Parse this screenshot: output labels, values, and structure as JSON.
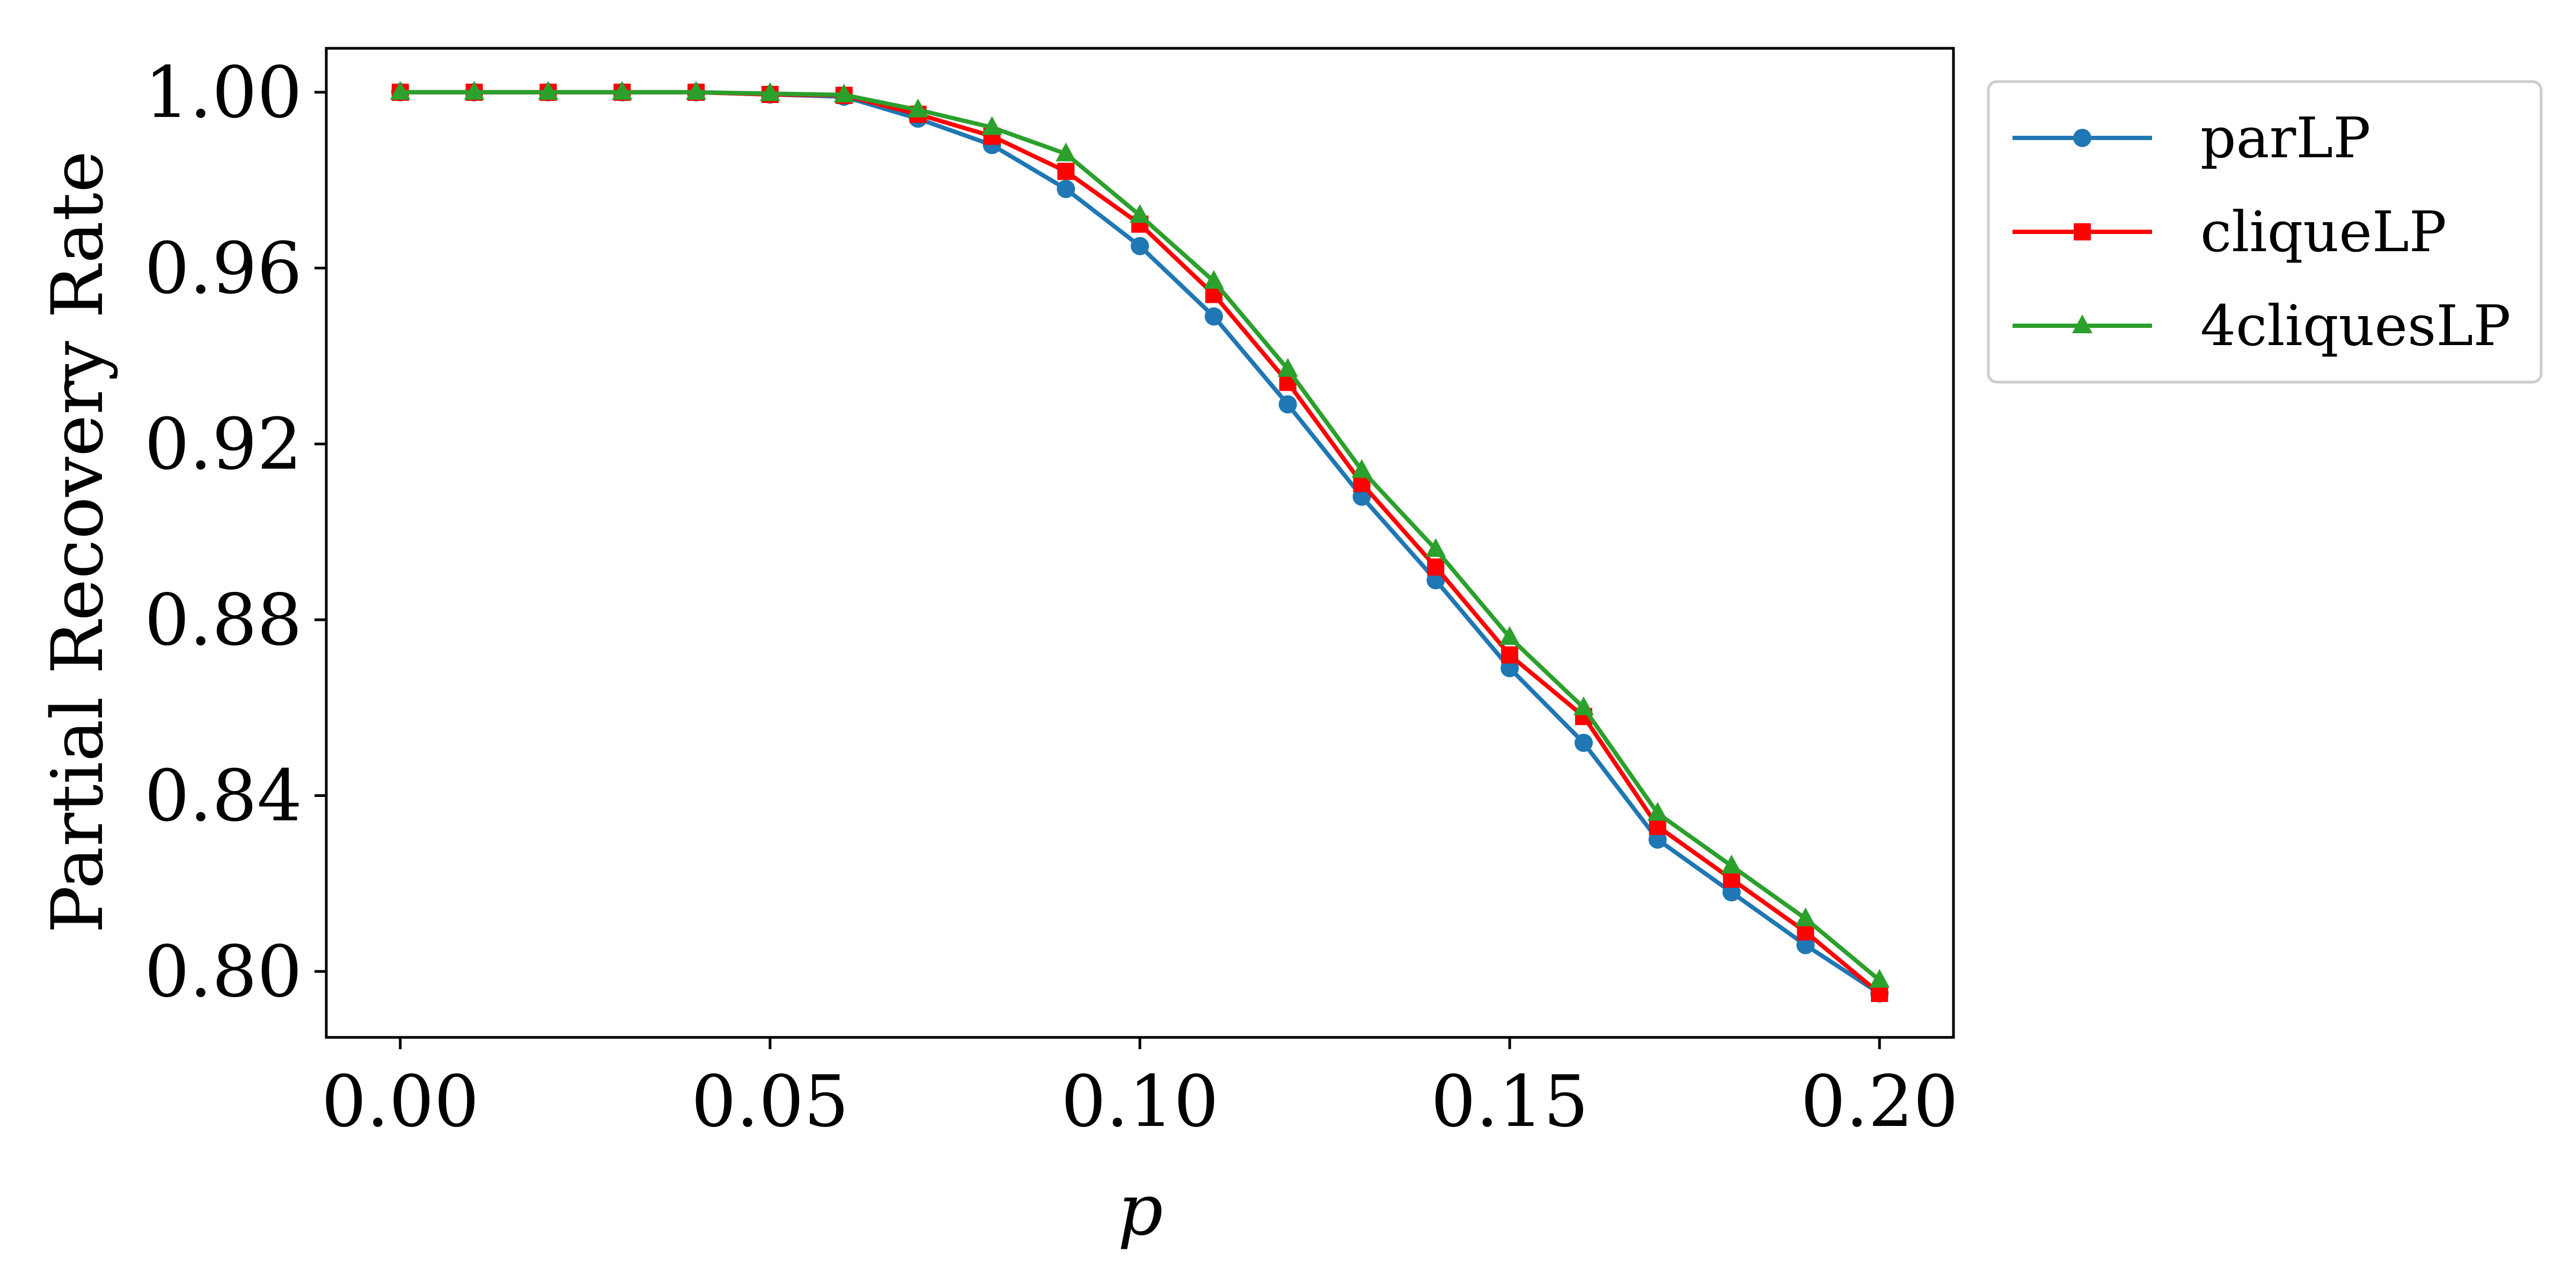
{
  "chart_data": {
    "type": "line",
    "title": "",
    "xlabel": "p",
    "ylabel": "Partial Recovery Rate",
    "xlim": [
      -0.01,
      0.21
    ],
    "ylim": [
      0.785,
      1.01
    ],
    "xticks": [
      0.0,
      0.05,
      0.1,
      0.15,
      0.2
    ],
    "xtick_labels": [
      "0.00",
      "0.05",
      "0.10",
      "0.15",
      "0.20"
    ],
    "yticks": [
      0.8,
      0.84,
      0.88,
      0.92,
      0.96,
      1.0
    ],
    "ytick_labels": [
      "0.80",
      "0.84",
      "0.88",
      "0.92",
      "0.96",
      "1.00"
    ],
    "grid": false,
    "legend_position": "outside-right-top",
    "x": [
      0.0,
      0.01,
      0.02,
      0.03,
      0.04,
      0.05,
      0.06,
      0.07,
      0.08,
      0.09,
      0.1,
      0.11,
      0.12,
      0.13,
      0.14,
      0.15,
      0.16,
      0.17,
      0.18,
      0.19,
      0.2
    ],
    "series": [
      {
        "name": "parLP",
        "color": "#1f77b4",
        "marker": "circle",
        "values": [
          1.0,
          1.0,
          1.0,
          1.0,
          1.0,
          0.9995,
          0.999,
          0.994,
          0.988,
          0.978,
          0.965,
          0.949,
          0.929,
          0.908,
          0.889,
          0.869,
          0.852,
          0.83,
          0.818,
          0.806,
          0.795
        ]
      },
      {
        "name": "cliqueLP",
        "color": "#ff0000",
        "marker": "square",
        "values": [
          1.0,
          1.0,
          1.0,
          1.0,
          1.0,
          0.9995,
          0.9993,
          0.995,
          0.99,
          0.982,
          0.97,
          0.954,
          0.934,
          0.911,
          0.892,
          0.872,
          0.858,
          0.833,
          0.821,
          0.809,
          0.795
        ]
      },
      {
        "name": "4cliquesLP",
        "color": "#2ca02c",
        "marker": "triangle",
        "values": [
          1.0,
          1.0,
          1.0,
          1.0,
          1.0,
          0.9997,
          0.9994,
          0.996,
          0.992,
          0.986,
          0.972,
          0.957,
          0.937,
          0.914,
          0.896,
          0.876,
          0.86,
          0.836,
          0.824,
          0.812,
          0.798
        ]
      }
    ]
  }
}
